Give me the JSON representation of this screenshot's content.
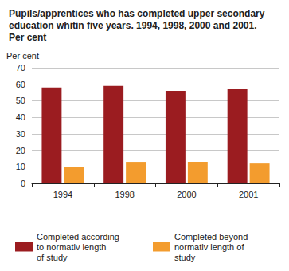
{
  "chart_data": {
    "type": "bar",
    "title": "Pupils/apprentices who has completed upper secondary education whitin five years. 1994, 1998, 2000 and 2001. Per cent",
    "ylabel": "Per cent",
    "categories": [
      "1994",
      "1998",
      "2000",
      "2001"
    ],
    "series": [
      {
        "name": "Completed according to normativ length of study",
        "color": "#9b1c20",
        "values": [
          58,
          59,
          56,
          57
        ]
      },
      {
        "name": "Completed beyond normativ length of study",
        "color": "#f39c2e",
        "values": [
          10,
          13,
          13,
          12
        ]
      }
    ],
    "ylim": [
      0,
      70
    ],
    "yticks": [
      0,
      10,
      20,
      30,
      40,
      50,
      60,
      70
    ],
    "grid": true,
    "legend": "bottom"
  }
}
